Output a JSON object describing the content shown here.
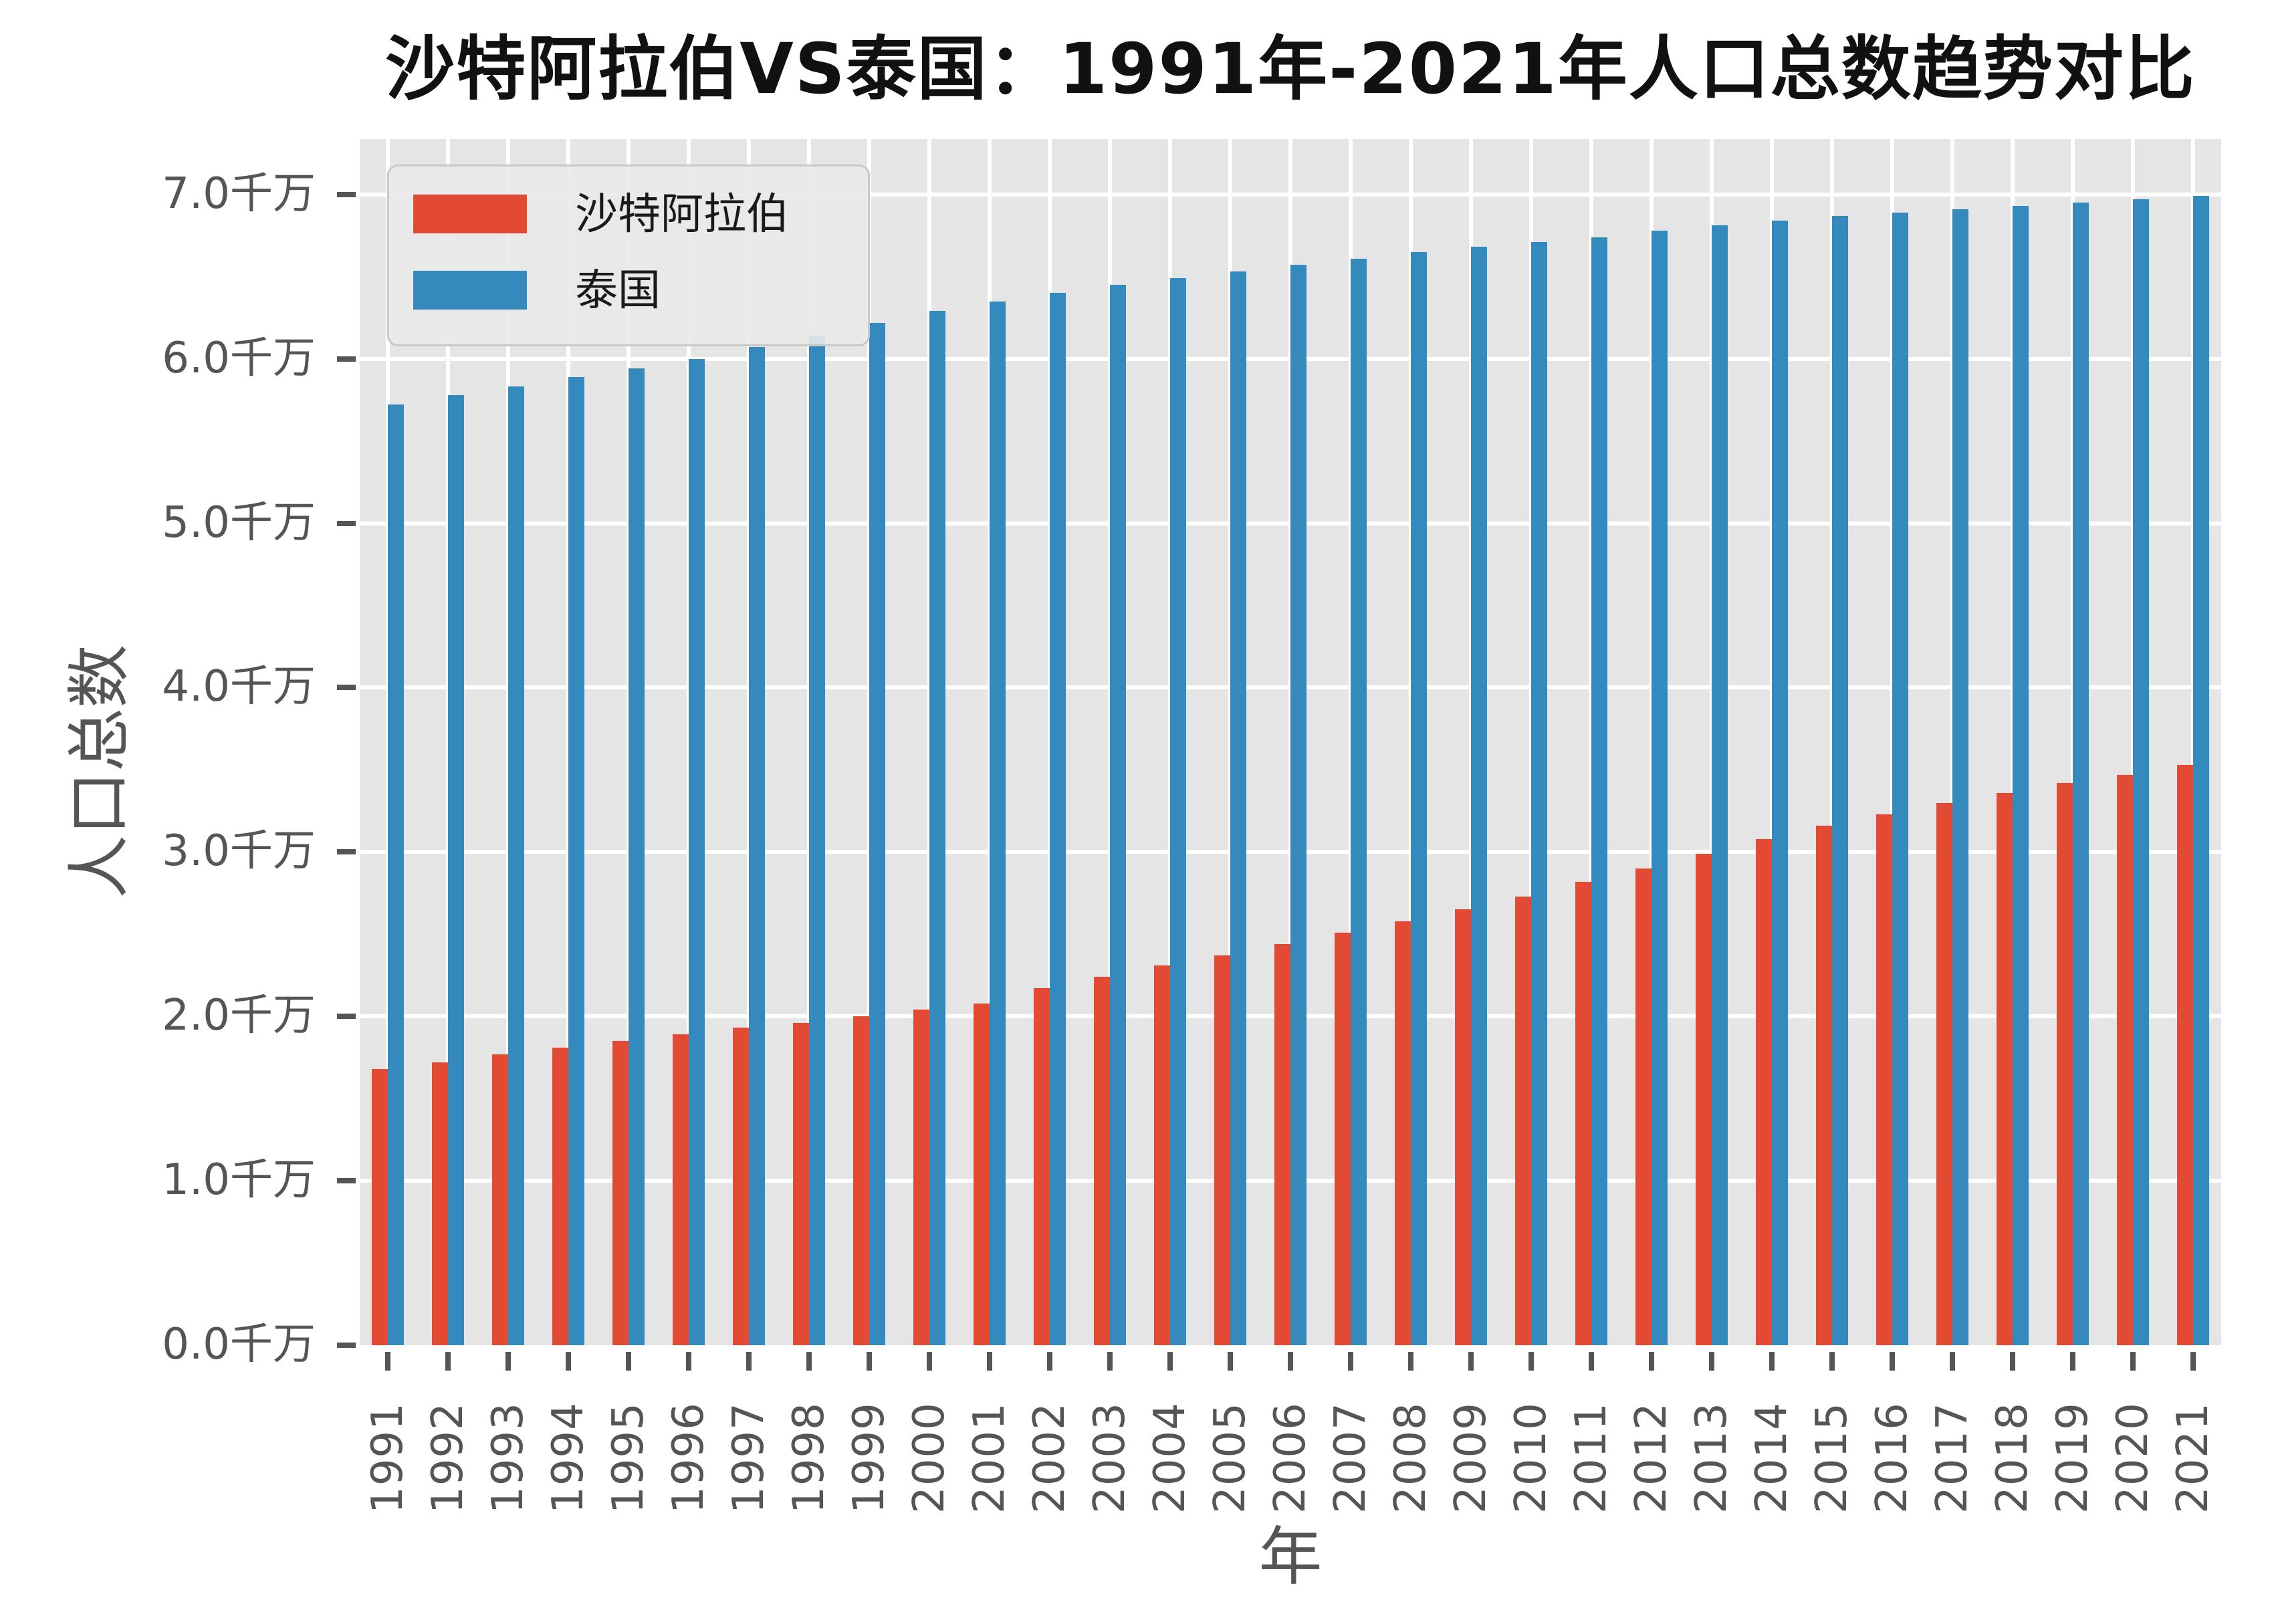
{
  "chart_data": {
    "type": "bar",
    "title": "沙特阿拉伯VS泰国：1991年-2021年人口总数趋势对比",
    "xlabel": "年",
    "ylabel": "人口总数",
    "unit": "千万",
    "categories": [
      1991,
      1992,
      1993,
      1994,
      1995,
      1996,
      1997,
      1998,
      1999,
      2000,
      2001,
      2002,
      2003,
      2004,
      2005,
      2006,
      2007,
      2008,
      2009,
      2010,
      2011,
      2012,
      2013,
      2014,
      2015,
      2016,
      2017,
      2018,
      2019,
      2020,
      2021
    ],
    "series": [
      {
        "name": "沙特阿拉伯",
        "color": "#E24A33",
        "values": [
          1.68,
          1.72,
          1.77,
          1.81,
          1.85,
          1.89,
          1.93,
          1.96,
          2.0,
          2.04,
          2.08,
          2.17,
          2.24,
          2.31,
          2.37,
          2.44,
          2.51,
          2.58,
          2.65,
          2.73,
          2.82,
          2.9,
          2.99,
          3.08,
          3.16,
          3.23,
          3.3,
          3.36,
          3.42,
          3.47,
          3.53
        ]
      },
      {
        "name": "泰国",
        "color": "#348ABD",
        "values": [
          5.72,
          5.78,
          5.83,
          5.89,
          5.94,
          6.0,
          6.07,
          6.14,
          6.22,
          6.29,
          6.35,
          6.4,
          6.45,
          6.49,
          6.53,
          6.57,
          6.61,
          6.65,
          6.68,
          6.71,
          6.74,
          6.78,
          6.81,
          6.84,
          6.87,
          6.89,
          6.91,
          6.93,
          6.95,
          6.97,
          6.99
        ]
      }
    ],
    "y_ticks": [
      "0.0千万",
      "1.0千万",
      "2.0千万",
      "3.0千万",
      "4.0千万",
      "5.0千万",
      "6.0千万",
      "7.0千万"
    ],
    "ylim": [
      0,
      7.34
    ],
    "grid": true,
    "legend_position": "upper left",
    "plot_background": "#E5E5E5",
    "gridline_color": "#FFFFFF",
    "tick_label_color": "#555555"
  }
}
